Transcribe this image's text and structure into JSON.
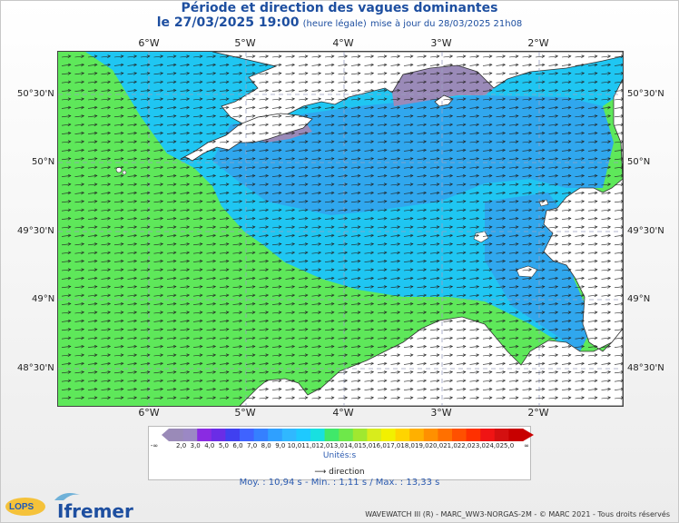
{
  "header": {
    "title": "Période et direction des vagues dominantes",
    "date": "le 27/03/2025 19:00",
    "legal_note": "(heure légale)",
    "update_note": "mise à jour du 28/03/2025 21h08"
  },
  "axes": {
    "lon_labels": [
      "6°W",
      "5°W",
      "4°W",
      "3°W",
      "2°W"
    ],
    "lat_labels": [
      "50°30'N",
      "50°N",
      "49°30'N",
      "49°N",
      "48°30'N"
    ]
  },
  "legend": {
    "min_symbol": "-∞",
    "max_symbol": "∞",
    "ticks": [
      "2,0",
      "3,0",
      "4,0",
      "5,0",
      "6,0",
      "7,0",
      "8,0",
      "9,0",
      "10,0",
      "11,0",
      "12,0",
      "13,0",
      "14,0",
      "15,0",
      "16,0",
      "17,0",
      "18,0",
      "19,0",
      "20,0",
      "21,0",
      "22,0",
      "23,0",
      "24,0",
      "25,0"
    ],
    "colors": [
      "#9a8ab8",
      "#9b88c4",
      "#8a2be2",
      "#6a2de6",
      "#4040f0",
      "#3f63ff",
      "#3580ff",
      "#2fa0ff",
      "#30b8ff",
      "#1ec9ff",
      "#18e0e0",
      "#40e86a",
      "#6ee84a",
      "#a0e830",
      "#d8ec1c",
      "#f2f000",
      "#ffd400",
      "#ffb000",
      "#ff9000",
      "#ff7000",
      "#ff5000",
      "#ff3000",
      "#f01414",
      "#d41010",
      "#c80000"
    ],
    "units_label": "Unités:s",
    "direction_label": "direction"
  },
  "stats": {
    "text": "Moy. : 10,94 s   -   Min. : 1,11 s / Max. : 13,33 s"
  },
  "footer": {
    "logo_lops": "LOPS",
    "logo_ifremer": "Ifremer",
    "credit": "WAVEWATCH III (R) - MARC_WW3-NORGAS-2M - © MARC 2021 - Tous droits réservés"
  },
  "map_colors": {
    "green": "#5ee85a",
    "cyan": "#1fc6f2",
    "blue": "#30a7ee",
    "purple": "#9a8ab8",
    "land": "#ffffff"
  }
}
